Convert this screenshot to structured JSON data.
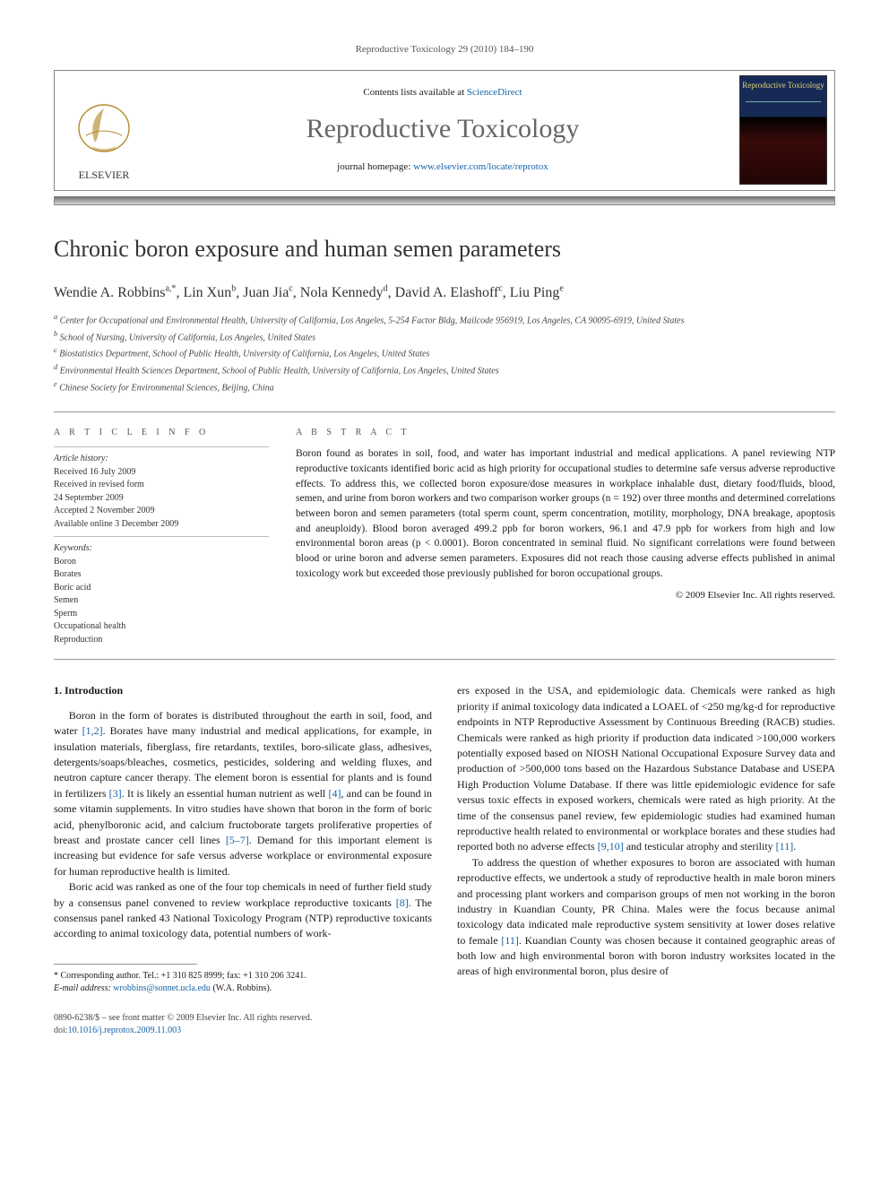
{
  "running_head": "Reproductive Toxicology 29 (2010) 184–190",
  "header": {
    "contents_prefix": "Contents lists available at ",
    "contents_link": "ScienceDirect",
    "journal": "Reproductive Toxicology",
    "homepage_prefix": "journal homepage: ",
    "homepage_url": "www.elsevier.com/locate/reprotox",
    "cover_title": "Reproductive Toxicology"
  },
  "title": "Chronic boron exposure and human semen parameters",
  "authors_html": "Wendie A. Robbins",
  "authors": [
    {
      "name": "Wendie A. Robbins",
      "marks": "a,*"
    },
    {
      "name": "Lin Xun",
      "marks": "b"
    },
    {
      "name": "Juan Jia",
      "marks": "c"
    },
    {
      "name": "Nola Kennedy",
      "marks": "d"
    },
    {
      "name": "David A. Elashoff",
      "marks": "c"
    },
    {
      "name": "Liu Ping",
      "marks": "e"
    }
  ],
  "affiliations": {
    "a": "Center for Occupational and Environmental Health, University of California, Los Angeles, 5-254 Factor Bldg, Mailcode 956919, Los Angeles, CA 90095-6919, United States",
    "b": "School of Nursing, University of California, Los Angeles, United States",
    "c": "Biostatistics Department, School of Public Health, University of California, Los Angeles, United States",
    "d": "Environmental Health Sciences Department, School of Public Health, University of California, Los Angeles, United States",
    "e": "Chinese Society for Environmental Sciences, Beijing, China"
  },
  "article_info": {
    "head": "A R T I C L E   I N F O",
    "history_label": "Article history:",
    "received": "Received 16 July 2009",
    "revised1": "Received in revised form",
    "revised2": "24 September 2009",
    "accepted": "Accepted 2 November 2009",
    "online": "Available online 3 December 2009",
    "keywords_label": "Keywords:",
    "keywords": [
      "Boron",
      "Borates",
      "Boric acid",
      "Semen",
      "Sperm",
      "Occupational health",
      "Reproduction"
    ]
  },
  "abstract": {
    "head": "A B S T R A C T",
    "text": "Boron found as borates in soil, food, and water has important industrial and medical applications. A panel reviewing NTP reproductive toxicants identified boric acid as high priority for occupational studies to determine safe versus adverse reproductive effects. To address this, we collected boron exposure/dose measures in workplace inhalable dust, dietary food/fluids, blood, semen, and urine from boron workers and two comparison worker groups (n = 192) over three months and determined correlations between boron and semen parameters (total sperm count, sperm concentration, motility, morphology, DNA breakage, apoptosis and aneuploidy). Blood boron averaged 499.2 ppb for boron workers, 96.1 and 47.9 ppb for workers from high and low environmental boron areas (p < 0.0001). Boron concentrated in seminal fluid. No significant correlations were found between blood or urine boron and adverse semen parameters. Exposures did not reach those causing adverse effects published in animal toxicology work but exceeded those previously published for boron occupational groups.",
    "copyright": "© 2009 Elsevier Inc. All rights reserved."
  },
  "section1": {
    "head": "1. Introduction",
    "p1a": "Boron in the form of borates is distributed throughout the earth in soil, food, and water ",
    "p1ref1": "[1,2]",
    "p1b": ". Borates have many industrial and medical applications, for example, in insulation materials, fiberglass, fire retardants, textiles, boro-silicate glass, adhesives, detergents/soaps/bleaches, cosmetics, pesticides, soldering and welding fluxes, and neutron capture cancer therapy. The element boron is essential for plants and is found in fertilizers ",
    "p1ref2": "[3]",
    "p1c": ". It is likely an essential human nutrient as well ",
    "p1ref3": "[4]",
    "p1d": ", and can be found in some vitamin supplements. In vitro studies have shown that boron in the form of boric acid, phenylboronic acid, and calcium fructoborate targets proliferative properties of breast and prostate cancer cell lines ",
    "p1ref4": "[5–7]",
    "p1e": ". Demand for this important element is increasing but evidence for safe versus adverse workplace or environmental exposure for human reproductive health is limited.",
    "p2a": "Boric acid was ranked as one of the four top chemicals in need of further field study by a consensus panel convened to review workplace reproductive toxicants ",
    "p2ref1": "[8]",
    "p2b": ". The consensus panel ranked 43 National Toxicology Program (NTP) reproductive toxicants according to animal toxicology data, potential numbers of work",
    "p2c": "ers exposed in the USA, and epidemiologic data. Chemicals were ranked as high priority if animal toxicology data indicated a LOAEL of <250 mg/kg-d for reproductive endpoints in NTP Reproductive Assessment by Continuous Breeding (RACB) studies. Chemicals were ranked as high priority if production data indicated >100,000 workers potentially exposed based on NIOSH National Occupational Exposure Survey data and production of >500,000 tons based on the Hazardous Substance Database and USEPA High Production Volume Database. If there was little epidemiologic evidence for safe versus toxic effects in exposed workers, chemicals were rated as high priority. At the time of the consensus panel review, few epidemiologic studies had examined human reproductive health related to environmental or workplace borates and these studies had reported both no adverse effects ",
    "p2ref2": "[9,10]",
    "p2d": " and testicular atrophy and sterility ",
    "p2ref3": "[11]",
    "p2e": ".",
    "p3a": "To address the question of whether exposures to boron are associated with human reproductive effects, we undertook a study of reproductive health in male boron miners and processing plant workers and comparison groups of men not working in the boron industry in Kuandian County, PR China. Males were the focus because animal toxicology data indicated male reproductive system sensitivity at lower doses relative to female ",
    "p3ref1": "[11]",
    "p3b": ". Kuandian County was chosen because it contained geographic areas of both low and high environmental boron with boron industry worksites located in the areas of high environmental boron, plus desire of"
  },
  "corresponding": {
    "star": "*",
    "label": " Corresponding author. Tel.: +1 310 825 8999; fax: +1 310 206 3241.",
    "email_label": "E-mail address: ",
    "email": "wrobbins@sonnet.ucla.edu",
    "email_who": " (W.A. Robbins)."
  },
  "footer": {
    "line1": "0890-6238/$ – see front matter © 2009 Elsevier Inc. All rights reserved.",
    "doi_label": "doi:",
    "doi": "10.1016/j.reprotox.2009.11.003"
  },
  "colors": {
    "link": "#1462a6",
    "text": "#1a1a1a",
    "muted": "#555555",
    "rule": "#999999"
  }
}
